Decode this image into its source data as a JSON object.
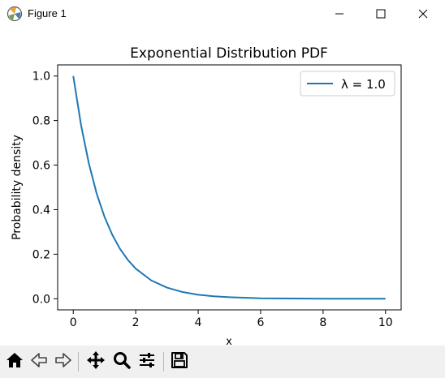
{
  "window": {
    "title": "Figure 1",
    "icon": "matplotlib-figure-icon"
  },
  "window_controls": {
    "minimize_icon": "minimize-icon",
    "maximize_icon": "maximize-icon",
    "close_icon": "close-icon"
  },
  "toolbar": {
    "buttons": [
      {
        "name": "home-button",
        "icon": "home-icon"
      },
      {
        "name": "back-button",
        "icon": "arrow-left-icon"
      },
      {
        "name": "forward-button",
        "icon": "arrow-right-icon"
      },
      {
        "name": "pan-button",
        "icon": "move-icon"
      },
      {
        "name": "zoom-button",
        "icon": "magnifier-icon"
      },
      {
        "name": "configure-subplots-button",
        "icon": "sliders-icon"
      },
      {
        "name": "save-button",
        "icon": "floppy-disk-icon"
      }
    ]
  },
  "chart_data": {
    "type": "line",
    "title": "Exponential Distribution PDF",
    "xlabel": "x",
    "ylabel": "Probability density",
    "xlim": [
      -0.5,
      10.5
    ],
    "ylim": [
      -0.05,
      1.05
    ],
    "x_ticks": [
      0,
      2,
      4,
      6,
      8,
      10
    ],
    "x_tick_labels": [
      "0",
      "2",
      "4",
      "6",
      "8",
      "10"
    ],
    "y_ticks": [
      0.0,
      0.2,
      0.4,
      0.6,
      0.8,
      1.0
    ],
    "y_tick_labels": [
      "0.0",
      "0.2",
      "0.4",
      "0.6",
      "0.8",
      "1.0"
    ],
    "grid": false,
    "legend_position": "top-right",
    "series": [
      {
        "name": "λ = 1.0",
        "color": "#1f77b4",
        "x": [
          0,
          0.25,
          0.5,
          0.75,
          1,
          1.25,
          1.5,
          1.75,
          2,
          2.5,
          3,
          3.5,
          4,
          4.5,
          5,
          6,
          7,
          8,
          9,
          10
        ],
        "y": [
          1.0,
          0.779,
          0.607,
          0.472,
          0.368,
          0.287,
          0.223,
          0.174,
          0.135,
          0.082,
          0.05,
          0.03,
          0.018,
          0.011,
          0.007,
          0.002,
          0.001,
          0.0,
          0.0,
          0.0
        ]
      }
    ]
  }
}
